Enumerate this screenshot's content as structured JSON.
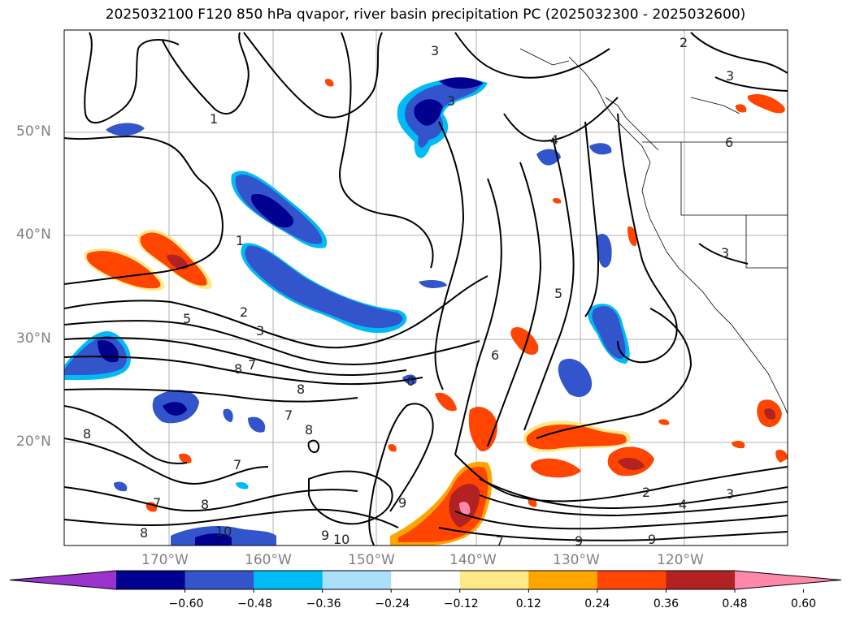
{
  "title": "2025032100 F120 850 hPa qvapor, river basin precipitation PC (2025032300 - 2025032600)",
  "lat_labels": [
    "50°N",
    "40°N",
    "30°N",
    "20°N"
  ],
  "lon_labels": [
    "170°W",
    "160°W",
    "150°W",
    "140°W",
    "130°W",
    "120°W"
  ],
  "colorbar": {
    "ticks": [
      "−0.60",
      "−0.48",
      "−0.36",
      "−0.24",
      "−0.12",
      "0.12",
      "0.24",
      "0.36",
      "0.48",
      "0.60"
    ],
    "colors": [
      "#9933cc",
      "#000090",
      "#3355cc",
      "#00bbf5",
      "#aae0fa",
      "#ffffff",
      "#ffe888",
      "#ffa500",
      "#ff4500",
      "#b22222",
      "#ff88aa"
    ]
  },
  "contour_labels": [
    "1",
    "1",
    "2",
    "3",
    "3",
    "3",
    "2",
    "3",
    "4",
    "5",
    "6",
    "6",
    "6",
    "7",
    "7",
    "7",
    "7",
    "8",
    "8",
    "8",
    "8",
    "8",
    "9",
    "9",
    "9",
    "10",
    "10",
    "5",
    "3",
    "2",
    "4",
    "3",
    "9",
    "7",
    "8"
  ]
}
